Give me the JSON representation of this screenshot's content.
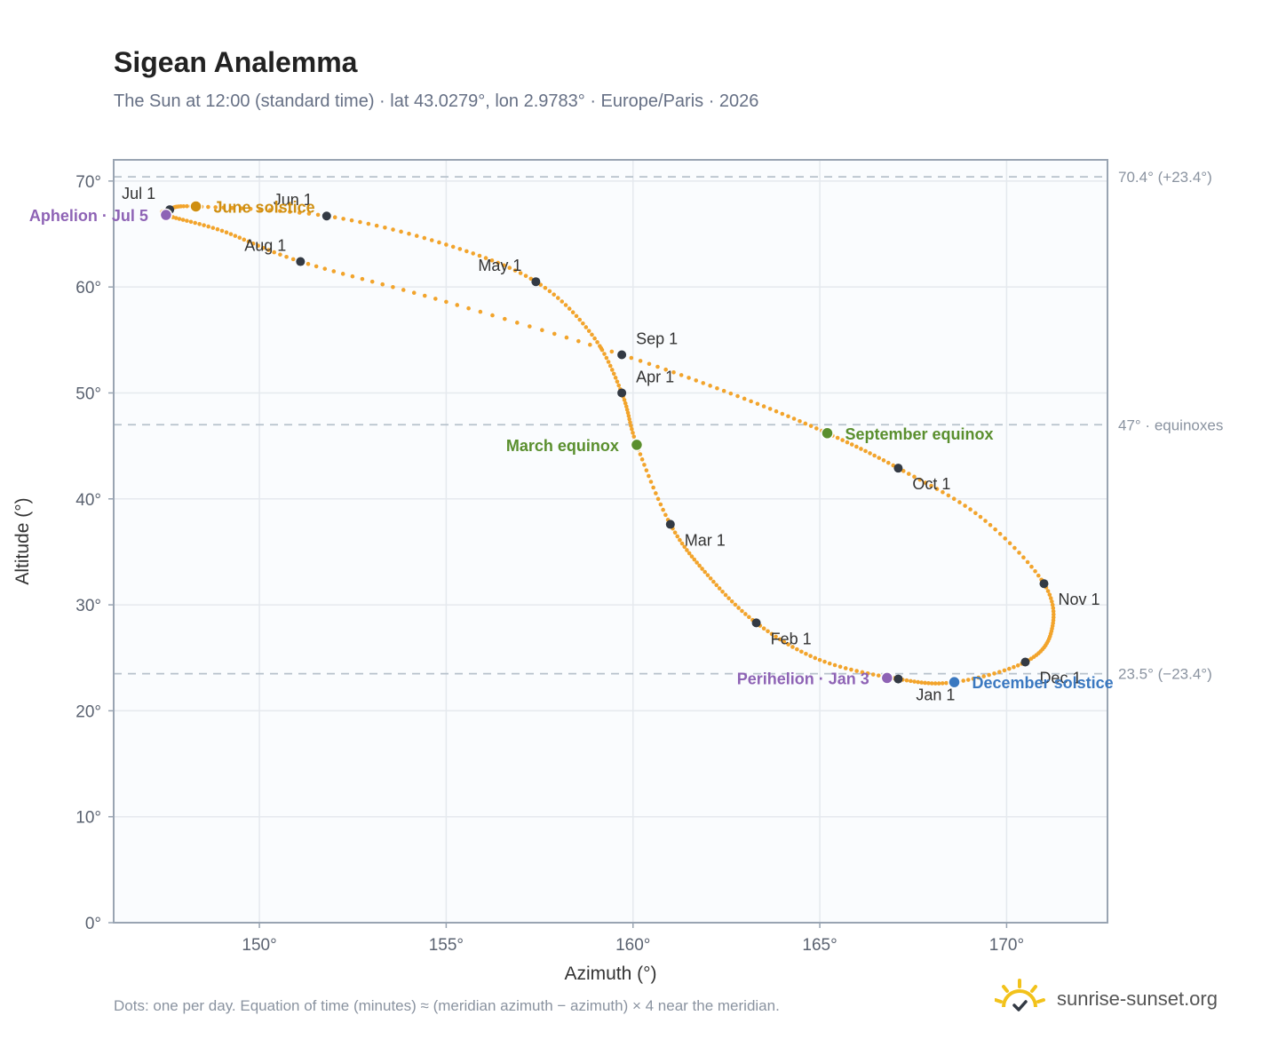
{
  "title": "Sigean Analemma",
  "subtitle": "The Sun at 12:00 (standard time) · lat 43.0279°, lon 2.9783° · Europe/Paris · 2026",
  "footnote": "Dots: one per day. Equation of time (minutes) ≈ (meridian azimuth − azimuth) × 4 near the meridian.",
  "brand": {
    "text": "sunrise-sunset.org",
    "icon": "sun-logo-icon"
  },
  "colors": {
    "curve": "#f2a42c",
    "month_marker": "#333a44",
    "solstice_june": "#cf8f12",
    "solstice_december": "#3a78c0",
    "equinox": "#5a8f2e",
    "apsis": "#8e63b5",
    "reference_line": "#b7c2cc",
    "grid": "#e5e9ee",
    "plot_bg": "#fafcfe",
    "frame": "#99a4b2"
  },
  "chart_data": {
    "type": "scatter",
    "xlabel": "Azimuth (°)",
    "ylabel": "Altitude (°)",
    "xlim": [
      146.1,
      172.7
    ],
    "ylim": [
      0,
      72
    ],
    "x_ticks": [
      150,
      155,
      160,
      165,
      170
    ],
    "x_tick_labels": [
      "150°",
      "155°",
      "160°",
      "165°",
      "170°"
    ],
    "y_ticks": [
      0,
      10,
      20,
      30,
      40,
      50,
      60,
      70
    ],
    "y_tick_labels": [
      "0°",
      "10°",
      "20°",
      "30°",
      "40°",
      "50°",
      "60°",
      "70°"
    ],
    "grid": true,
    "series": [
      {
        "kind": "daily-positions",
        "points_per": "day",
        "anchors": [
          {
            "date": "Jan 1",
            "az": 167.1,
            "alt": 23.0
          },
          {
            "date": "Jan 15",
            "az": 165.0,
            "alt": 24.8
          },
          {
            "date": "Feb 1",
            "az": 163.3,
            "alt": 28.3
          },
          {
            "date": "Feb 15",
            "az": 162.0,
            "alt": 32.8
          },
          {
            "date": "Mar 1",
            "az": 161.0,
            "alt": 37.6
          },
          {
            "date": "Mar 20",
            "az": 160.1,
            "alt": 45.1
          },
          {
            "date": "Apr 1",
            "az": 159.7,
            "alt": 50.0
          },
          {
            "date": "Apr 15",
            "az": 158.9,
            "alt": 55.5
          },
          {
            "date": "May 1",
            "az": 157.4,
            "alt": 60.5
          },
          {
            "date": "May 15",
            "az": 155.0,
            "alt": 64.0
          },
          {
            "date": "Jun 1",
            "az": 151.8,
            "alt": 66.7
          },
          {
            "date": "Jun 21",
            "az": 148.3,
            "alt": 67.6
          },
          {
            "date": "Jul 1",
            "az": 147.6,
            "alt": 67.3
          },
          {
            "date": "Jul 5",
            "az": 147.5,
            "alt": 66.8
          },
          {
            "date": "Jul 15",
            "az": 149.0,
            "alt": 65.3
          },
          {
            "date": "Aug 1",
            "az": 151.1,
            "alt": 62.4
          },
          {
            "date": "Aug 15",
            "az": 155.0,
            "alt": 58.6
          },
          {
            "date": "Sep 1",
            "az": 159.7,
            "alt": 53.6
          },
          {
            "date": "Sep 15",
            "az": 162.8,
            "alt": 49.7
          },
          {
            "date": "Sep 23",
            "az": 165.2,
            "alt": 46.2
          },
          {
            "date": "Oct 1",
            "az": 167.1,
            "alt": 42.9
          },
          {
            "date": "Oct 15",
            "az": 169.3,
            "alt": 38.3
          },
          {
            "date": "Nov 1",
            "az": 171.0,
            "alt": 32.0
          },
          {
            "date": "Nov 15",
            "az": 171.2,
            "alt": 27.5
          },
          {
            "date": "Dec 1",
            "az": 170.5,
            "alt": 24.6
          },
          {
            "date": "Dec 21",
            "az": 168.6,
            "alt": 22.7
          },
          {
            "date": "Jan 1",
            "az": 167.1,
            "alt": 23.0
          }
        ]
      }
    ],
    "month_markers": [
      {
        "label": "Jan 1",
        "az": 167.1,
        "alt": 23.0,
        "label_pos": "below"
      },
      {
        "label": "Feb 1",
        "az": 163.3,
        "alt": 28.3,
        "label_pos": "below-right"
      },
      {
        "label": "Mar 1",
        "az": 161.0,
        "alt": 37.6,
        "label_pos": "below-right"
      },
      {
        "label": "Apr 1",
        "az": 159.7,
        "alt": 50.0,
        "label_pos": "above-right"
      },
      {
        "label": "May 1",
        "az": 157.4,
        "alt": 60.5,
        "label_pos": "above-left"
      },
      {
        "label": "Jun 1",
        "az": 151.8,
        "alt": 66.7,
        "label_pos": "above-left"
      },
      {
        "label": "Jul 1",
        "az": 147.6,
        "alt": 67.3,
        "label_pos": "above-left"
      },
      {
        "label": "Aug 1",
        "az": 151.1,
        "alt": 62.4,
        "label_pos": "above-left"
      },
      {
        "label": "Sep 1",
        "az": 159.7,
        "alt": 53.6,
        "label_pos": "above-right"
      },
      {
        "label": "Oct 1",
        "az": 167.1,
        "alt": 42.9,
        "label_pos": "below-right"
      },
      {
        "label": "Nov 1",
        "az": 171.0,
        "alt": 32.0,
        "label_pos": "below-right"
      },
      {
        "label": "Dec 1",
        "az": 170.5,
        "alt": 24.6,
        "label_pos": "below-right"
      }
    ],
    "events": [
      {
        "label": "June solstice",
        "az": 148.3,
        "alt": 67.6,
        "color_key": "solstice_june",
        "label_side": "right"
      },
      {
        "label": "December solstice",
        "az": 168.6,
        "alt": 22.7,
        "color_key": "solstice_december",
        "label_side": "right"
      },
      {
        "label": "March equinox",
        "az": 160.1,
        "alt": 45.1,
        "color_key": "equinox",
        "label_side": "left"
      },
      {
        "label": "September equinox",
        "az": 165.2,
        "alt": 46.2,
        "color_key": "equinox",
        "label_side": "right"
      },
      {
        "label": "Aphelion · Jul 5",
        "az": 147.5,
        "alt": 66.8,
        "color_key": "apsis",
        "label_side": "left"
      },
      {
        "label": "Perihelion · Jan 3",
        "az": 166.8,
        "alt": 23.1,
        "color_key": "apsis",
        "label_side": "left"
      }
    ],
    "reference_lines": [
      {
        "alt": 70.4,
        "label": "70.4° (+23.4°)"
      },
      {
        "alt": 47.0,
        "label": "47° · equinoxes"
      },
      {
        "alt": 23.5,
        "label": "23.5° (−23.4°)"
      }
    ]
  }
}
